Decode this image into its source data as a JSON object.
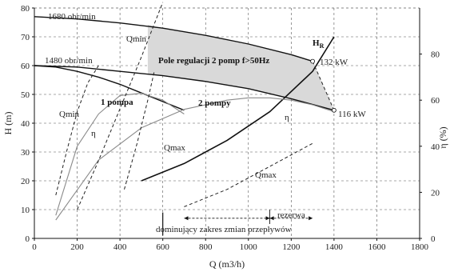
{
  "chart_data": {
    "type": "line",
    "title": "",
    "xlabel": "Q (m3/h)",
    "ylabel": "H (m)",
    "y2label": "η (%)",
    "xlim": [
      0,
      1800
    ],
    "ylim": [
      0,
      80
    ],
    "y2lim": [
      0,
      100
    ],
    "xticks": [
      "0",
      "200",
      "400",
      "600",
      "800",
      "1000",
      "1200",
      "1400",
      "1600",
      "1800"
    ],
    "yticks": [
      "0",
      "10",
      "20",
      "30",
      "40",
      "50",
      "60",
      "70",
      "80"
    ],
    "y2ticks": [
      "0",
      "20",
      "40",
      "60",
      "80"
    ],
    "grid": true,
    "series": [
      {
        "name": "1680 obr/min",
        "role": "pump-1680",
        "x": [
          0,
          200,
          400,
          600,
          800,
          1000,
          1200,
          1300
        ],
        "y": [
          77,
          76.2,
          74.8,
          73,
          70.5,
          67.5,
          63.8,
          61.5
        ]
      },
      {
        "name": "1480 obr/min",
        "role": "pump-1480",
        "x": [
          0,
          100,
          200,
          300,
          400,
          500,
          600,
          700
        ],
        "y": [
          60,
          59.5,
          58,
          56,
          53.5,
          50.5,
          47.5,
          44.5
        ]
      },
      {
        "name": "",
        "role": "pump-2-1480",
        "x": [
          0,
          200,
          400,
          600,
          800,
          1000,
          1200,
          1400
        ],
        "y": [
          60,
          59.5,
          58,
          56.5,
          54.5,
          52,
          48.5,
          44.5
        ]
      },
      {
        "name": "H_R",
        "role": "system",
        "x": [
          500,
          700,
          900,
          1100,
          1300,
          1400
        ],
        "y": [
          20,
          26,
          34,
          44,
          58,
          70
        ]
      },
      {
        "name": "η",
        "role": "eff-1",
        "x": [
          100,
          200,
          300,
          400,
          500,
          600,
          700
        ],
        "y2": [
          10,
          40,
          54,
          62,
          63,
          60,
          54
        ]
      },
      {
        "name": "",
        "role": "eff-2",
        "x": [
          100,
          300,
          500,
          700,
          900,
          1000,
          1100,
          1200,
          1300,
          1400
        ],
        "y2": [
          8,
          34,
          48,
          56,
          60,
          61,
          61,
          60,
          58,
          55
        ]
      }
    ],
    "envelopes": {
      "qmin_1": {
        "label": "Qmin",
        "x": [
          100,
          150,
          200,
          250,
          300
        ],
        "y": [
          15,
          30,
          44,
          54,
          60
        ]
      },
      "qmin_2": {
        "label": "Qmin",
        "x": [
          200,
          300,
          400,
          500,
          600
        ],
        "y": [
          10,
          27,
          45,
          63,
          82
        ]
      },
      "qmax_1": {
        "label": "Qmax",
        "x": [
          420,
          480,
          530,
          560
        ],
        "y": [
          17,
          33,
          48,
          58
        ]
      },
      "qmax_2": {
        "label": "Qmax",
        "x": [
          700,
          900,
          1100,
          1300
        ],
        "y": [
          11,
          17,
          25,
          33
        ]
      },
      "qmax_right": {
        "x": [
          1300,
          1350,
          1400
        ],
        "y": [
          61.5,
          53,
          44.5
        ]
      }
    },
    "region": {
      "label": "Pole regulacji 2 pomp f>50Hz"
    },
    "annotations": {
      "pump_1": "1 pompa",
      "pump_2": "2 pompy",
      "qmin_label_1": "Qmin",
      "qmin_label_2": "Qmin",
      "eta_label_1": "η",
      "eta_label_2": "η",
      "qmax_label_1": "Qmax",
      "qmax_label_2": "Qmax",
      "power_132": "132 kW",
      "power_116": "116 kW",
      "reserve": "rezerwa",
      "dominant_range": "dominujący zakres zmian przepływów"
    },
    "ranges": {
      "dominant": [
        700,
        1100
      ],
      "reserve": [
        1100,
        1300
      ]
    }
  }
}
